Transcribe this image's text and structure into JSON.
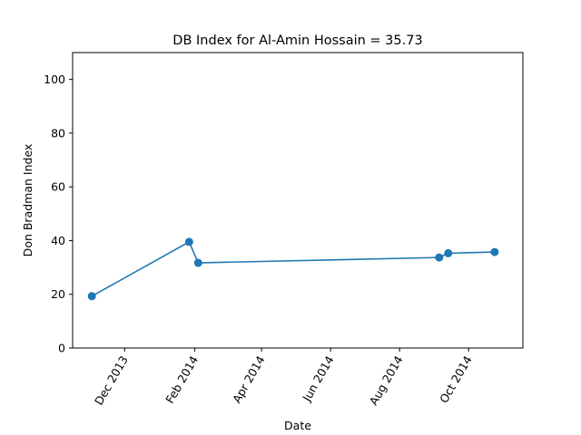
{
  "chart_data": {
    "type": "line",
    "title": "DB Index for Al-Amin Hossain = 35.73",
    "xlabel": "Date",
    "ylabel": "Don Bradman Index",
    "ylim": [
      0,
      110
    ],
    "xlim": [
      "2013-10-16",
      "2014-11-18"
    ],
    "y_ticks": [
      0,
      20,
      40,
      60,
      80,
      100
    ],
    "x_ticks": [
      {
        "date": "2013-12-01",
        "label": "Dec 2013"
      },
      {
        "date": "2014-02-01",
        "label": "Feb 2014"
      },
      {
        "date": "2014-04-01",
        "label": "Apr 2014"
      },
      {
        "date": "2014-06-01",
        "label": "Jun 2014"
      },
      {
        "date": "2014-08-01",
        "label": "Aug 2014"
      },
      {
        "date": "2014-10-01",
        "label": "Oct 2014"
      }
    ],
    "series": [
      {
        "color": "#1f77b4",
        "marker": "circle",
        "x": [
          "2013-11-02",
          "2014-01-27",
          "2014-02-04",
          "2014-09-05",
          "2014-09-13",
          "2014-10-24"
        ],
        "y": [
          19.3,
          39.5,
          31.7,
          33.7,
          35.3,
          35.73
        ]
      }
    ],
    "grid": false,
    "legend": "none"
  }
}
